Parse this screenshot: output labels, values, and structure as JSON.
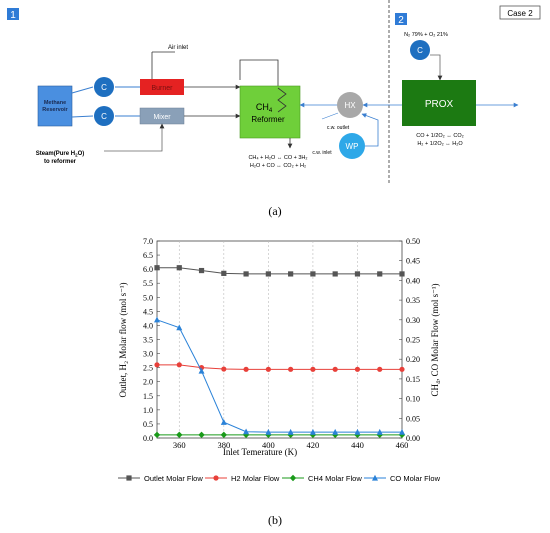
{
  "diagram": {
    "section1_label": "1",
    "section2_label": "2",
    "case_label": "Case 2",
    "methane_reservoir": [
      "Methane",
      "Reservoir"
    ],
    "compressor_label": "C",
    "burner_label": "Burner",
    "mixer_label": "Mixer",
    "air_inlet_label": "Air inlet",
    "reformer_label": [
      "CH",
      "4",
      "Reformer"
    ],
    "hx_label": "HX",
    "wp_label": "WP",
    "prox_label": "PROX",
    "cw_outlet_label": "c.w. outlet",
    "cw_inlet_label": "c.w. inlet",
    "steam_label": [
      "Steam(Pure H",
      "2",
      "O)",
      "to reformer"
    ],
    "air_composition": "N₂ 79% + O₂ 21%",
    "reformer_reactions": [
      "CH₄ + H₂O ↔ CO + 3H₂",
      "H₂O + CO ↔ CO₂ + H₂"
    ],
    "prox_reactions": [
      "CO + 1/2O₂ ↔ CO₂",
      "H₂ + 1/2O₂ ↔ H₂O"
    ],
    "caption": "(a)"
  },
  "chart_data": {
    "type": "line",
    "xlabel": "Inlet Temerature (K)",
    "ylabel_left": "Outlet, H₂ Molar flow (mol s⁻¹)",
    "ylabel_right": "CH₄, CO Molar Flow (mol s⁻¹)",
    "xlim": [
      350,
      460
    ],
    "ylim_left": [
      0,
      7
    ],
    "ylim_right": [
      0,
      0.5
    ],
    "x_ticks": [
      "360",
      "380",
      "400",
      "420",
      "440",
      "460"
    ],
    "y_left_ticks": [
      "0.0",
      "0.5",
      "1.0",
      "1.5",
      "2.0",
      "2.5",
      "3.0",
      "3.5",
      "4.0",
      "4.5",
      "5.0",
      "5.5",
      "6.0",
      "6.5",
      "7.0"
    ],
    "y_right_ticks": [
      "0.00",
      "0.05",
      "0.10",
      "0.15",
      "0.20",
      "0.25",
      "0.30",
      "0.35",
      "0.40",
      "0.45",
      "0.50"
    ],
    "grid": "vertical dashed",
    "legend_position": "bottom",
    "x": [
      350,
      360,
      370,
      380,
      390,
      400,
      410,
      420,
      430,
      440,
      450,
      460
    ],
    "series": [
      {
        "name": "Outlet Molar Flow",
        "axis": "left",
        "color": "#555555",
        "marker": "square",
        "values": [
          6.05,
          6.05,
          5.95,
          5.85,
          5.83,
          5.83,
          5.83,
          5.83,
          5.83,
          5.83,
          5.83,
          5.83
        ]
      },
      {
        "name": "H2 Molar Flow",
        "axis": "left",
        "color": "#e8403a",
        "marker": "circle",
        "values": [
          2.6,
          2.6,
          2.5,
          2.45,
          2.44,
          2.44,
          2.44,
          2.44,
          2.44,
          2.44,
          2.44,
          2.44
        ]
      },
      {
        "name": "CH4 Molar Flow",
        "axis": "right",
        "color": "#1a9a1a",
        "marker": "diamond",
        "values": [
          0.008,
          0.008,
          0.008,
          0.008,
          0.008,
          0.008,
          0.008,
          0.008,
          0.008,
          0.008,
          0.008,
          0.008
        ]
      },
      {
        "name": "CO Molar Flow",
        "axis": "right",
        "color": "#2a82d8",
        "marker": "triangle",
        "values": [
          0.3,
          0.28,
          0.17,
          0.04,
          0.016,
          0.015,
          0.015,
          0.015,
          0.015,
          0.015,
          0.015,
          0.015
        ]
      }
    ],
    "caption": "(b)"
  }
}
